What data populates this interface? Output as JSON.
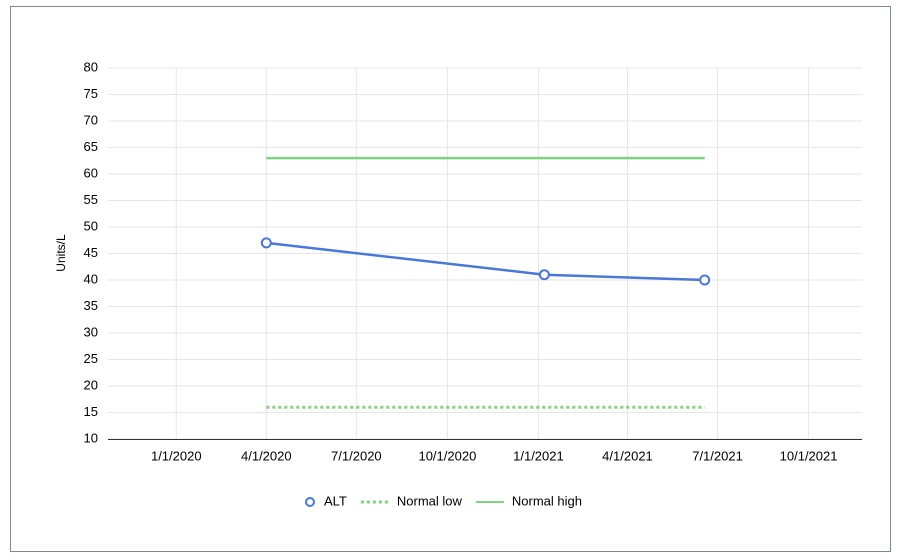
{
  "chart_data": {
    "type": "line",
    "y_label": "Units/L",
    "xlim": [
      "2019-10-24",
      "2021-11-24"
    ],
    "xticks": [
      {
        "value": "2020-01-01",
        "label": "1/1/2020"
      },
      {
        "value": "2020-04-01",
        "label": "4/1/2020"
      },
      {
        "value": "2020-07-01",
        "label": "7/1/2020"
      },
      {
        "value": "2020-10-01",
        "label": "10/1/2020"
      },
      {
        "value": "2021-01-01",
        "label": "1/1/2021"
      },
      {
        "value": "2021-04-01",
        "label": "4/1/2021"
      },
      {
        "value": "2021-07-01",
        "label": "7/1/2021"
      },
      {
        "value": "2021-10-01",
        "label": "10/1/2021"
      }
    ],
    "ylim": [
      10,
      80
    ],
    "yticks": [
      10,
      15,
      20,
      25,
      30,
      35,
      40,
      45,
      50,
      55,
      60,
      65,
      70,
      75,
      80
    ],
    "grid": true,
    "legend": "bottom",
    "series": [
      {
        "name": "ALT",
        "color": "#4a78d8",
        "style": "solid",
        "marker": "circle",
        "x": [
          "2020-04-01",
          "2021-01-07",
          "2021-06-18"
        ],
        "values": [
          47,
          41,
          40
        ]
      },
      {
        "name": "Normal low",
        "color": "#7fd37f",
        "style": "dotted",
        "marker": "none",
        "x": [
          "2020-04-01",
          "2021-06-18"
        ],
        "values": [
          16,
          16
        ]
      },
      {
        "name": "Normal high",
        "color": "#7fd37f",
        "style": "solid",
        "marker": "none",
        "x": [
          "2020-04-01",
          "2021-06-18"
        ],
        "values": [
          63,
          63
        ]
      }
    ]
  }
}
